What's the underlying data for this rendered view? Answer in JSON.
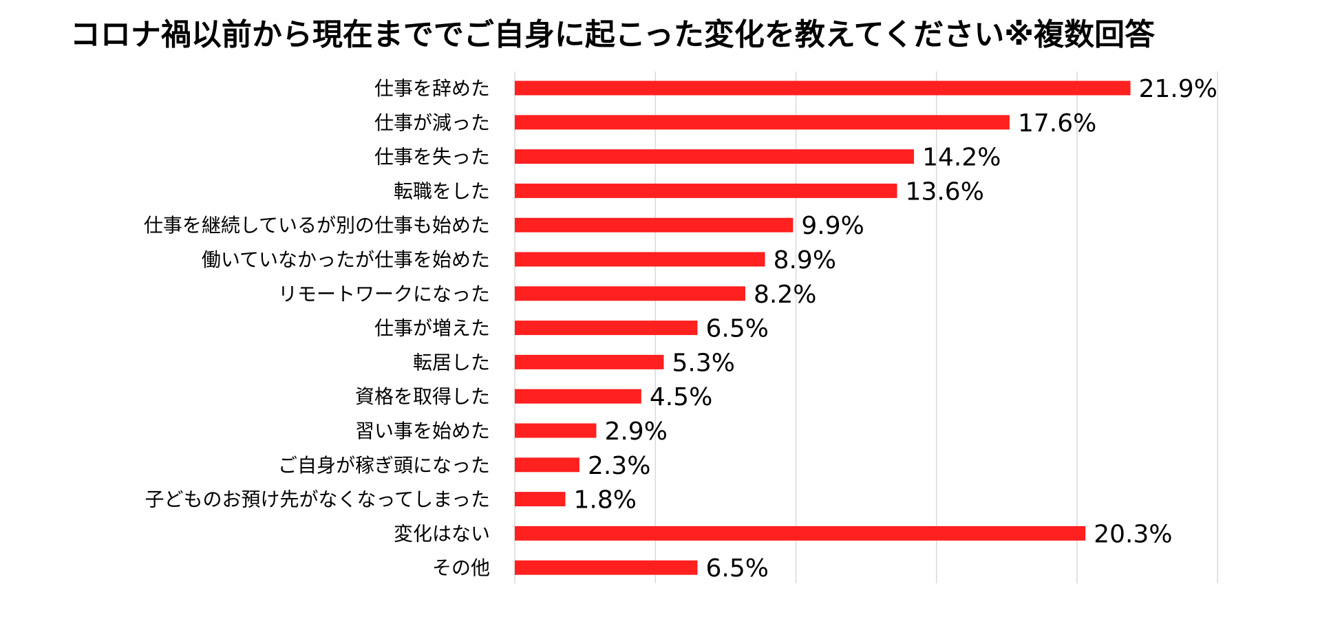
{
  "chart_data": {
    "type": "bar",
    "orientation": "horizontal",
    "title": "コロナ禍以前から現在まででご自身に起こった変化を教えてください※複数回答",
    "categories": [
      "仕事を辞めた",
      "仕事が減った",
      "仕事を失った",
      "転職をした",
      "仕事を継続しているが別の仕事も始めた",
      "働いていなかったが仕事を始めた",
      "リモートワークになった",
      "仕事が増えた",
      "転居した",
      "資格を取得した",
      "習い事を始めた",
      "ご自身が稼ぎ頭になった",
      "子どものお預け先がなくなってしまった",
      "変化はない",
      "その他"
    ],
    "values": [
      21.9,
      17.6,
      14.2,
      13.6,
      9.9,
      8.9,
      8.2,
      6.5,
      5.3,
      4.5,
      2.9,
      2.3,
      1.8,
      20.3,
      6.5
    ],
    "labels": [
      "21.9%",
      "17.6%",
      "14.2%",
      "13.6%",
      "9.9%",
      "8.9%",
      "8.2%",
      "6.5%",
      "5.3%",
      "4.5%",
      "2.9%",
      "2.3%",
      "1.8%",
      "20.3%",
      "6.5%"
    ],
    "value_unit": "%",
    "xlim": [
      0,
      25
    ],
    "grid": true,
    "legend": "none",
    "bar_color": "#ff2020",
    "grid_color": "#d9d9d9"
  }
}
